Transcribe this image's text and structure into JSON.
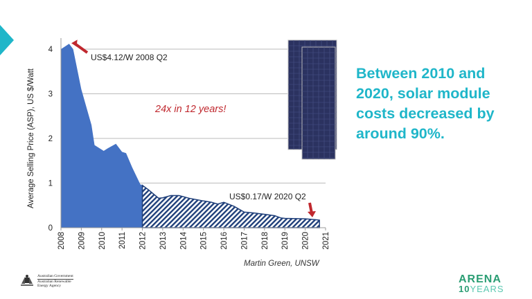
{
  "slide": {
    "headline": "Between 2010 and 2020, solar module costs decreased by around 90%.",
    "source": "Martin Green, UNSW",
    "gov_logo": [
      "Australian Government",
      "Australian Renewable",
      "Energy Agency"
    ],
    "arena_logo": {
      "line1": "ARENA",
      "line2_num": "10",
      "line2_text": "YEARS"
    },
    "accent_color": "#1fb6c9"
  },
  "chart_data": {
    "type": "area",
    "title": "",
    "xlabel": "",
    "ylabel": "Average Selling Price (ASP),  US $/Watt",
    "xlim": [
      2008,
      2021
    ],
    "ylim": [
      0,
      4.2
    ],
    "xticks": [
      "2008",
      "2009",
      "2010",
      "2011",
      "2012",
      "2013",
      "2014",
      "2015",
      "2016",
      "2017",
      "2018",
      "2019",
      "2020",
      "2021"
    ],
    "yticks": [
      "0",
      "1",
      "2",
      "3",
      "4"
    ],
    "grid": true,
    "fill_color": "#4472c4",
    "hatch_from": 2012,
    "series": [
      {
        "x": [
          2008,
          2008.4,
          2008.6,
          2009,
          2009.5,
          2009.65,
          2010.1,
          2010.3,
          2010.7,
          2011,
          2011.2,
          2011.5,
          2011.9,
          2012,
          2012.3,
          2012.8,
          2013,
          2013.4,
          2013.8,
          2014.3,
          2015,
          2015.4,
          2015.7,
          2016,
          2016.5,
          2017,
          2017.5,
          2018,
          2018.5,
          2018.8,
          2019,
          2020,
          2020.5,
          2020.7
        ],
        "y": [
          4.0,
          4.12,
          4.0,
          3.1,
          2.3,
          1.85,
          1.72,
          1.78,
          1.88,
          1.7,
          1.67,
          1.35,
          0.97,
          0.95,
          0.85,
          0.66,
          0.67,
          0.72,
          0.72,
          0.66,
          0.6,
          0.57,
          0.53,
          0.57,
          0.48,
          0.35,
          0.33,
          0.3,
          0.27,
          0.22,
          0.21,
          0.2,
          0.18,
          0.17
        ]
      }
    ],
    "annotations": [
      {
        "text": "US$4.12/W 2008 Q2",
        "x": 2008.4,
        "y": 4.12,
        "color": "#222"
      },
      {
        "text": "24x in 12 years!",
        "color": "#c0282e"
      },
      {
        "text": "US$0.17/W 2020 Q2",
        "x": 2020.7,
        "y": 0.17,
        "color": "#222"
      }
    ]
  }
}
